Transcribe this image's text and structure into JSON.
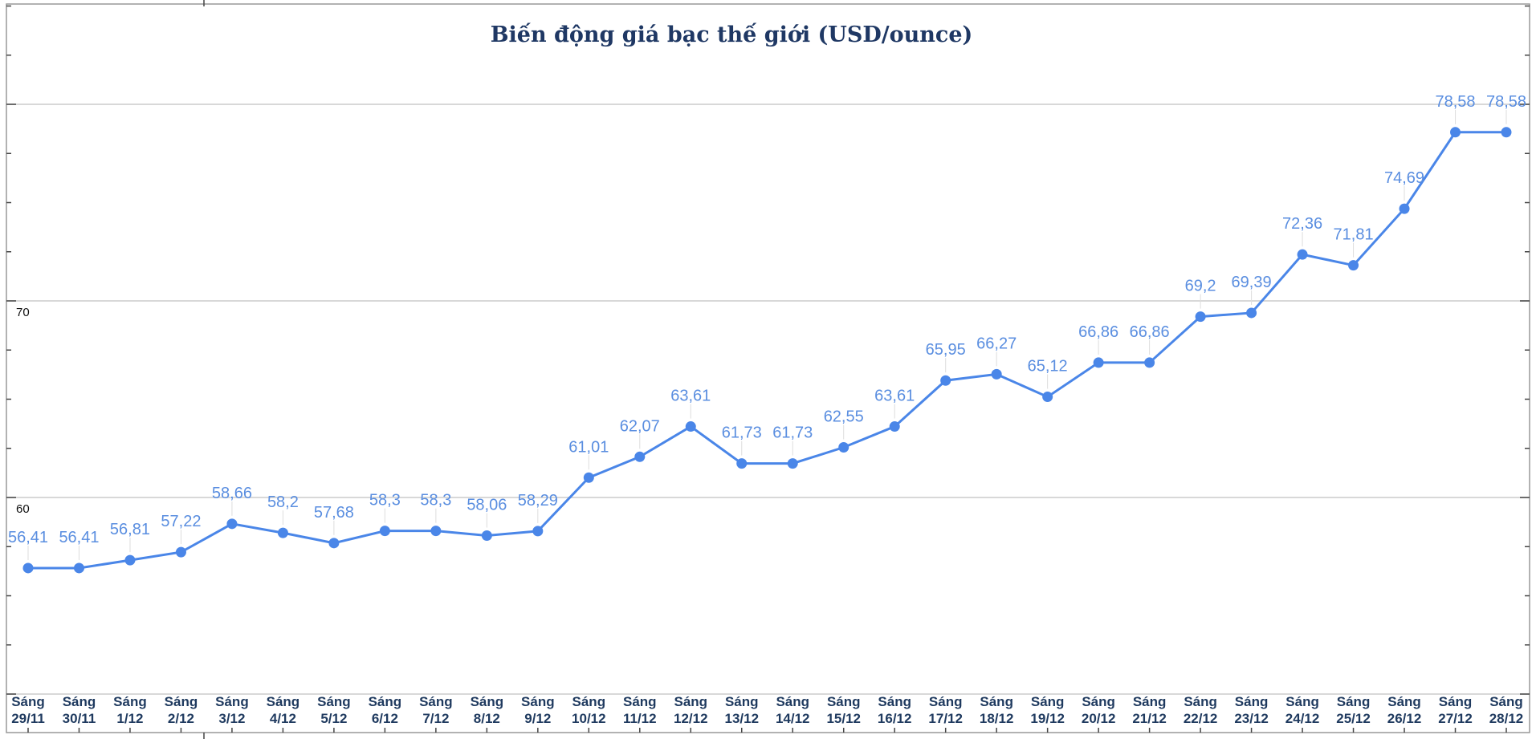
{
  "chart_data": {
    "type": "line",
    "title": "Biến động giá bạc thế giới (USD/ounce)",
    "xlabel": "",
    "ylabel": "",
    "ylim": [
      48.2,
      85
    ],
    "grid": true,
    "legend": "none",
    "y_ticks": [
      60,
      70
    ],
    "y_tick_labels": [
      "60",
      "70"
    ],
    "gridlines": [
      50,
      60,
      70,
      80
    ],
    "categories": [
      [
        "Sáng",
        "29/11"
      ],
      [
        "Sáng",
        "30/11"
      ],
      [
        "Sáng",
        "1/12"
      ],
      [
        "Sáng",
        "2/12"
      ],
      [
        "Sáng",
        "3/12"
      ],
      [
        "Sáng",
        "4/12"
      ],
      [
        "Sáng",
        "5/12"
      ],
      [
        "Sáng",
        "6/12"
      ],
      [
        "Sáng",
        "7/12"
      ],
      [
        "Sáng",
        "8/12"
      ],
      [
        "Sáng",
        "9/12"
      ],
      [
        "Sáng",
        "10/12"
      ],
      [
        "Sáng",
        "11/12"
      ],
      [
        "Sáng",
        "12/12"
      ],
      [
        "Sáng",
        "13/12"
      ],
      [
        "Sáng",
        "14/12"
      ],
      [
        "Sáng",
        "15/12"
      ],
      [
        "Sáng",
        "16/12"
      ],
      [
        "Sáng",
        "17/12"
      ],
      [
        "Sáng",
        "18/12"
      ],
      [
        "Sáng",
        "19/12"
      ],
      [
        "Sáng",
        "20/12"
      ],
      [
        "Sáng",
        "21/12"
      ],
      [
        "Sáng",
        "22/12"
      ],
      [
        "Sáng",
        "23/12"
      ],
      [
        "Sáng",
        "24/12"
      ],
      [
        "Sáng",
        "25/12"
      ],
      [
        "Sáng",
        "26/12"
      ],
      [
        "Sáng",
        "27/12"
      ],
      [
        "Sáng",
        "28/12"
      ]
    ],
    "series": [
      {
        "name": "Giá bạc",
        "color": "#4a86e8",
        "values": [
          56.41,
          56.41,
          56.81,
          57.22,
          58.66,
          58.2,
          57.68,
          58.3,
          58.3,
          58.06,
          58.29,
          61.01,
          62.07,
          63.61,
          61.73,
          61.73,
          62.55,
          63.61,
          65.95,
          66.27,
          65.12,
          66.86,
          66.86,
          69.2,
          69.39,
          72.36,
          71.81,
          74.69,
          78.58,
          78.58
        ],
        "labels": [
          "56,41",
          "56,41",
          "56,81",
          "57,22",
          "58,66",
          "58,2",
          "57,68",
          "58,3",
          "58,3",
          "58,06",
          "58,29",
          "61,01",
          "62,07",
          "63,61",
          "61,73",
          "61,73",
          "62,55",
          "63,61",
          "65,95",
          "66,27",
          "65,12",
          "66,86",
          "66,86",
          "69,2",
          "69,39",
          "72,36",
          "71,81",
          "74,69",
          "78,58",
          "78,58"
        ]
      }
    ]
  }
}
